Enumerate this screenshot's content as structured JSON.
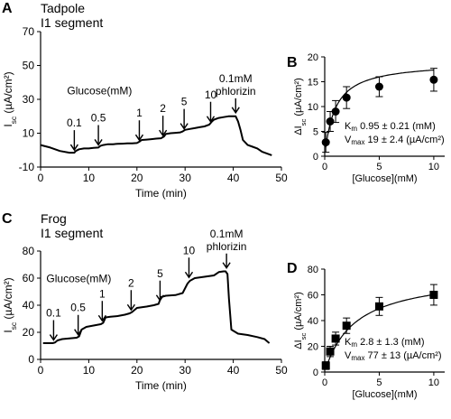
{
  "panels": [
    {
      "letter": "A",
      "title_lines": [
        "Tadpole",
        "I1 segment"
      ],
      "chart_data": {
        "type": "line",
        "xlabel": "Time (min)",
        "ylabel": "I_sc (µA/cm²)",
        "ylabel_main": "I",
        "ylabel_sub": "sc",
        "ylabel_rest": " (µA/cm²)",
        "xlim": [
          0,
          50
        ],
        "ylim": [
          -10,
          70
        ],
        "xticks": [
          0,
          10,
          20,
          30,
          40,
          50
        ],
        "yticks": [
          -10,
          10,
          30,
          50,
          70
        ],
        "x": [
          0,
          2,
          4,
          6,
          7,
          7.3,
          8,
          9,
          10,
          11,
          12,
          12.4,
          13,
          14,
          15,
          16,
          17,
          18,
          19,
          20,
          20.5,
          21,
          22,
          23,
          24,
          25,
          25.6,
          26,
          27,
          28,
          29,
          29.5,
          30,
          31,
          32,
          33,
          34,
          35,
          35.6,
          36,
          37,
          38,
          39,
          40.5,
          41,
          41.5,
          42,
          43,
          44,
          45,
          46,
          48
        ],
        "y": [
          3,
          1.5,
          -0.5,
          -1.5,
          -1.5,
          -0.5,
          0.5,
          1,
          1,
          1.3,
          1.5,
          2.5,
          3,
          3.5,
          3.5,
          3.7,
          3.8,
          4,
          4,
          4.2,
          5,
          6,
          6.2,
          6.5,
          6.8,
          7,
          8,
          9.5,
          10,
          10.2,
          10.5,
          11,
          12,
          12.5,
          13,
          13.5,
          14,
          15,
          17,
          18,
          19,
          19.5,
          20,
          20,
          17,
          12,
          6,
          3,
          2,
          1,
          -1,
          -3
        ],
        "annotations": [
          {
            "label": "0.1",
            "x": 7,
            "y": -1.5
          },
          {
            "label": "0.5",
            "x": 12,
            "y": 1.5
          },
          {
            "label": "1",
            "x": 20.5,
            "y": 4.3
          },
          {
            "label": "2",
            "x": 25.4,
            "y": 7
          },
          {
            "label": "5",
            "x": 29.8,
            "y": 11
          },
          {
            "label": "10",
            "x": 35.3,
            "y": 15.2
          },
          {
            "label": "0.1mM\nphlorizin",
            "x": 40.5,
            "y": 20.5
          }
        ],
        "series_label": "Glucose(mM)"
      }
    },
    {
      "letter": "B",
      "chart_data": {
        "type": "scatter",
        "xlabel": "[Glucose](mM)",
        "ylabel": "ΔI_sc (µA/cm²)",
        "ylabel_main": "ΔI",
        "ylabel_sub": "sc",
        "ylabel_rest": " (µA/cm²)",
        "xlim": [
          0,
          11
        ],
        "ylim": [
          0,
          20
        ],
        "xticks": [
          0,
          5,
          10
        ],
        "yticks": [
          0,
          5,
          10,
          15,
          20
        ],
        "marker": "circle",
        "x": [
          0.1,
          0.5,
          1,
          2,
          5,
          10
        ],
        "y": [
          2.8,
          7,
          9,
          11.8,
          14,
          15.4
        ],
        "err": [
          2,
          2,
          2.2,
          2.2,
          2,
          2.3
        ],
        "fit": {
          "Km": 0.95,
          "Vmax": 19
        },
        "params": [
          {
            "main": "K",
            "sub": "m",
            "text": " 0.95 ±  0.21 (mM)"
          },
          {
            "main": "V",
            "sub": "max",
            "text": " 19 ±  2.4 (µA/cm²)"
          }
        ]
      }
    },
    {
      "letter": "C",
      "title_lines": [
        "Frog",
        "I1 segment"
      ],
      "chart_data": {
        "type": "line",
        "xlabel": "Time (min)",
        "ylabel": "I_sc (µA/cm²)",
        "ylabel_main": "I",
        "ylabel_sub": "sc",
        "ylabel_rest": " (µA/cm²)",
        "xlim": [
          0,
          50
        ],
        "ylim": [
          0,
          80
        ],
        "xticks": [
          0,
          10,
          20,
          30,
          40,
          50
        ],
        "yticks": [
          0,
          20,
          40,
          60,
          80
        ],
        "x": [
          0.5,
          1.5,
          2.5,
          3,
          3.5,
          4.5,
          6,
          7.5,
          8,
          8.5,
          9.5,
          11,
          12.5,
          13,
          13.5,
          14.5,
          16,
          17.5,
          18.5,
          19,
          20,
          22,
          23.5,
          24.5,
          25,
          26,
          28,
          29.5,
          30.5,
          31,
          32,
          34,
          36,
          37,
          38,
          38.4,
          38.8,
          39.1,
          39.6,
          41,
          43,
          45,
          46.5,
          47.5
        ],
        "y": [
          12,
          12,
          12,
          12.5,
          14,
          15,
          15.5,
          16,
          17,
          22,
          24,
          25,
          26,
          27,
          31,
          31.5,
          32,
          33,
          34,
          35,
          38,
          39,
          40,
          41,
          46,
          47,
          47.5,
          49,
          56,
          58,
          60,
          61,
          62,
          64.5,
          65,
          65,
          63,
          45,
          22,
          19,
          18,
          16.5,
          15,
          12
        ],
        "annotations": [
          {
            "label": "0.1",
            "x": 2.7,
            "y": 12.3
          },
          {
            "label": "0.5",
            "x": 7.8,
            "y": 16.2
          },
          {
            "label": "1",
            "x": 12.8,
            "y": 26.5
          },
          {
            "label": "2",
            "x": 18.8,
            "y": 34.5
          },
          {
            "label": "5",
            "x": 24.8,
            "y": 41.5
          },
          {
            "label": "10",
            "x": 30.8,
            "y": 58.5
          },
          {
            "label": "0.1mM\nphlorizin",
            "x": 38.6,
            "y": 65.5
          }
        ],
        "series_label": "Glucose(mM)"
      }
    },
    {
      "letter": "D",
      "chart_data": {
        "type": "scatter",
        "xlabel": "[Glucose](mM)",
        "ylabel": "ΔI_sc (µA/cm²)",
        "ylabel_main": "ΔI",
        "ylabel_sub": "sc",
        "ylabel_rest": " (µA/cm²)",
        "xlim": [
          0,
          11
        ],
        "ylim": [
          0,
          80
        ],
        "xticks": [
          0,
          5,
          10
        ],
        "yticks": [
          0,
          20,
          40,
          60,
          80
        ],
        "marker": "square",
        "x": [
          0.1,
          0.5,
          1,
          2,
          5,
          10
        ],
        "y": [
          5,
          16,
          26,
          36,
          51,
          60
        ],
        "err": [
          3,
          4,
          5,
          6,
          7,
          8
        ],
        "fit": {
          "Km": 2.8,
          "Vmax": 77
        },
        "params": [
          {
            "main": "K",
            "sub": "m",
            "text": " 2.8 ±  1.3 (mM)"
          },
          {
            "main": "V",
            "sub": "max",
            "text": " 77 ±  13 (µA/cm²)"
          }
        ]
      }
    }
  ]
}
